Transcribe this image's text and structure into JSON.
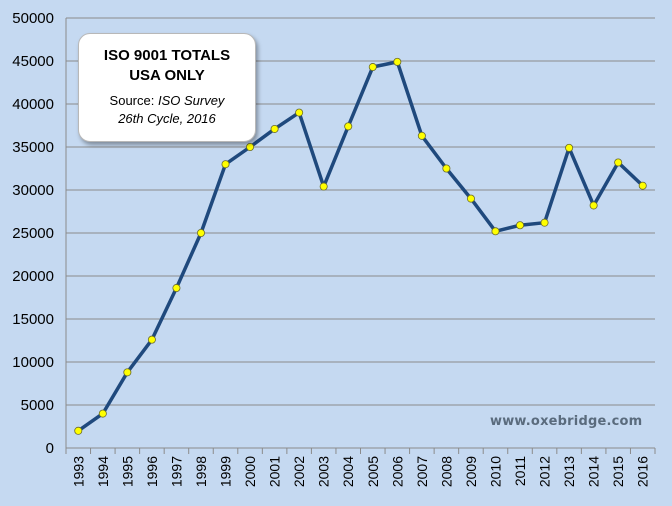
{
  "chart_data": {
    "type": "line",
    "title": "",
    "xlabel": "",
    "ylabel": "",
    "ylim": [
      0,
      50000
    ],
    "y_ticks": [
      0,
      5000,
      10000,
      15000,
      20000,
      25000,
      30000,
      35000,
      40000,
      45000,
      50000
    ],
    "x": [
      "1993",
      "1994",
      "1995",
      "1996",
      "1997",
      "1998",
      "1999",
      "2000",
      "2001",
      "2002",
      "2003",
      "2004",
      "2005",
      "2006",
      "2007",
      "2008",
      "2009",
      "2010",
      "2011",
      "2012",
      "2013",
      "2014",
      "2015",
      "2016"
    ],
    "series": [
      {
        "values": [
          2000,
          4000,
          8800,
          12600,
          18600,
          25000,
          33000,
          35000,
          37100,
          39000,
          30400,
          37400,
          44300,
          44900,
          36300,
          32500,
          29000,
          25200,
          25900,
          26200,
          34900,
          28200,
          33200,
          30500
        ],
        "line_color": "#1f497d",
        "marker_color": "#ffff00"
      }
    ],
    "grid": "horizontal",
    "background_color": "#c5d9f1"
  },
  "callout": {
    "line1": "ISO 9001 TOTALS",
    "line2": "USA ONLY",
    "source_prefix": "Source: ",
    "source_name": "ISO Survey",
    "source_detail": "26th Cycle, 2016"
  },
  "watermark": "www.oxebridge.com"
}
